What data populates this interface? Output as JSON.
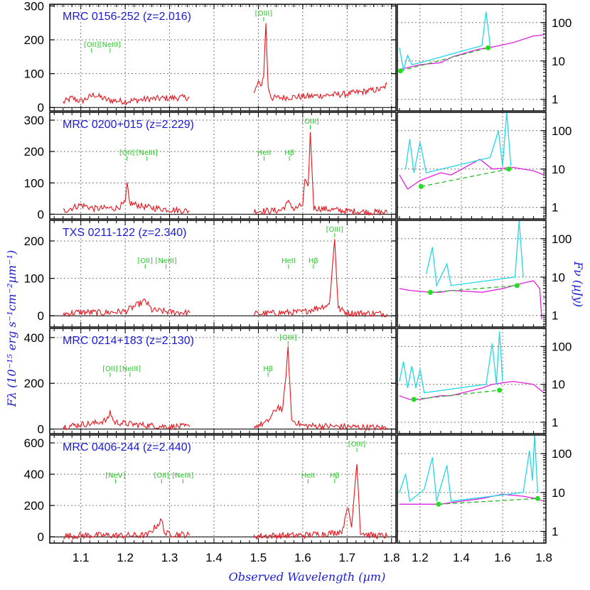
{
  "chart_data": {
    "type": "line",
    "xlabel": "Observed Wavelength (µm)",
    "ylabel_left": "Fλ (10⁻¹⁵ erg s⁻¹cm⁻²µm⁻¹)",
    "ylabel_right": "Fν (µJy)",
    "x_range": [
      1.03,
      1.81
    ],
    "x_ticks": [
      "1.1",
      "1.2",
      "1.3",
      "1.4",
      "1.5",
      "1.6",
      "1.7",
      "1.8"
    ],
    "sed_x_range": [
      1.09,
      1.81
    ],
    "sed_x_ticks": [
      "1.2",
      "1.4",
      "1.6",
      "1.8"
    ],
    "sed_y_range_log": [
      0.5,
      300
    ],
    "sed_y_ticks": [
      "1",
      "10",
      "100"
    ],
    "panels": [
      {
        "name": "MRC 0156-252",
        "redshift": "(z=2.016)",
        "ylim": [
          -10,
          305
        ],
        "yticks": [
          "0",
          "100",
          "200",
          "300"
        ],
        "lines": [
          {
            "label": "[OII]",
            "x": 1.124
          },
          {
            "label": "[NeIII]",
            "x": 1.166
          },
          {
            "label": "[OIII]",
            "x": 1.512
          }
        ],
        "spectrum_segments": [
          [
            [
              1.06,
              15
            ],
            [
              1.08,
              28
            ],
            [
              1.1,
              18
            ],
            [
              1.13,
              38
            ],
            [
              1.16,
              22
            ],
            [
              1.2,
              18
            ],
            [
              1.25,
              25
            ],
            [
              1.3,
              28
            ],
            [
              1.345,
              30
            ]
          ],
          [
            [
              1.49,
              40
            ],
            [
              1.5,
              75
            ],
            [
              1.505,
              60
            ],
            [
              1.512,
              95
            ],
            [
              1.517,
              250
            ],
            [
              1.522,
              60
            ],
            [
              1.53,
              28
            ],
            [
              1.6,
              32
            ],
            [
              1.7,
              40
            ],
            [
              1.78,
              55
            ],
            [
              1.79,
              70
            ]
          ]
        ],
        "sed_cyan": [
          [
            1.1,
            22
          ],
          [
            1.12,
            6
          ],
          [
            1.14,
            14
          ],
          [
            1.16,
            8
          ],
          [
            1.2,
            9
          ],
          [
            1.5,
            25
          ],
          [
            1.52,
            190
          ],
          [
            1.54,
            25
          ]
        ],
        "sed_magenta": [
          [
            1.1,
            6
          ],
          [
            1.2,
            8
          ],
          [
            1.3,
            9
          ],
          [
            1.36,
            13
          ],
          [
            1.48,
            20
          ],
          [
            1.55,
            23
          ],
          [
            1.65,
            30
          ],
          [
            1.75,
            45
          ],
          [
            1.8,
            48
          ]
        ],
        "sed_points": [
          [
            1.105,
            5.5
          ],
          [
            1.53,
            22
          ]
        ]
      },
      {
        "name": "MRC 0200+015",
        "redshift": "(z=2.229)",
        "ylim": [
          -15,
          325
        ],
        "yticks": [
          "0",
          "100",
          "200",
          "300"
        ],
        "lines": [
          {
            "label": "[OII]",
            "x": 1.204
          },
          {
            "label": "[NeIII]",
            "x": 1.249
          },
          {
            "label": "HeII",
            "x": 1.513
          },
          {
            "label": "Hβ",
            "x": 1.57
          },
          {
            "label": "[OIII]",
            "x": 1.617
          }
        ],
        "spectrum_segments": [
          [
            [
              1.06,
              10
            ],
            [
              1.08,
              20
            ],
            [
              1.1,
              30
            ],
            [
              1.13,
              18
            ],
            [
              1.18,
              20
            ],
            [
              1.2,
              35
            ],
            [
              1.204,
              95
            ],
            [
              1.21,
              35
            ],
            [
              1.25,
              22
            ],
            [
              1.3,
              15
            ],
            [
              1.345,
              10
            ]
          ],
          [
            [
              1.49,
              10
            ],
            [
              1.55,
              12
            ],
            [
              1.57,
              40
            ],
            [
              1.58,
              15
            ],
            [
              1.6,
              30
            ],
            [
              1.605,
              110
            ],
            [
              1.612,
              80
            ],
            [
              1.617,
              260
            ],
            [
              1.625,
              20
            ],
            [
              1.7,
              10
            ],
            [
              1.79,
              5
            ]
          ]
        ],
        "sed_cyan": [
          [
            1.13,
            10
          ],
          [
            1.15,
            60
          ],
          [
            1.17,
            8
          ],
          [
            1.2,
            50
          ],
          [
            1.23,
            8
          ],
          [
            1.54,
            20
          ],
          [
            1.58,
            100
          ],
          [
            1.6,
            12
          ],
          [
            1.62,
            300
          ],
          [
            1.64,
            12
          ]
        ],
        "sed_magenta": [
          [
            1.1,
            7
          ],
          [
            1.14,
            3
          ],
          [
            1.2,
            5
          ],
          [
            1.3,
            8
          ],
          [
            1.35,
            7
          ],
          [
            1.49,
            18
          ],
          [
            1.55,
            10
          ],
          [
            1.65,
            11
          ],
          [
            1.75,
            9
          ],
          [
            1.8,
            7
          ]
        ],
        "sed_points": [
          [
            1.205,
            3.5
          ],
          [
            1.63,
            10
          ]
        ]
      },
      {
        "name": "TXS 0211-122",
        "redshift": "(z=2.340)",
        "ylim": [
          -30,
          255
        ],
        "yticks": [
          "0",
          "100",
          "200"
        ],
        "lines": [
          {
            "label": "[OII]",
            "x": 1.245
          },
          {
            "label": "[NeIII]",
            "x": 1.292
          },
          {
            "label": "HeII",
            "x": 1.568
          },
          {
            "label": "Hβ",
            "x": 1.624
          },
          {
            "label": "[OIII]",
            "x": 1.672
          }
        ],
        "spectrum_segments": [
          [
            [
              1.06,
              5
            ],
            [
              1.1,
              10
            ],
            [
              1.15,
              8
            ],
            [
              1.2,
              12
            ],
            [
              1.245,
              40
            ],
            [
              1.26,
              15
            ],
            [
              1.3,
              10
            ],
            [
              1.345,
              8
            ]
          ],
          [
            [
              1.49,
              5
            ],
            [
              1.55,
              8
            ],
            [
              1.6,
              10
            ],
            [
              1.66,
              30
            ],
            [
              1.672,
              205
            ],
            [
              1.68,
              20
            ],
            [
              1.7,
              8
            ],
            [
              1.79,
              5
            ]
          ]
        ],
        "sed_cyan": [
          [
            1.23,
            12
          ],
          [
            1.26,
            60
          ],
          [
            1.28,
            6
          ],
          [
            1.33,
            22
          ],
          [
            1.35,
            6
          ],
          [
            1.66,
            10
          ],
          [
            1.68,
            300
          ],
          [
            1.7,
            10
          ]
        ],
        "sed_magenta": [
          [
            1.1,
            5
          ],
          [
            1.15,
            4.5
          ],
          [
            1.25,
            4
          ],
          [
            1.3,
            4
          ],
          [
            1.35,
            4.5
          ],
          [
            1.5,
            4
          ],
          [
            1.6,
            5
          ],
          [
            1.7,
            7
          ],
          [
            1.75,
            8
          ],
          [
            1.78,
            5
          ],
          [
            1.79,
            0.8
          ]
        ],
        "sed_points": [
          [
            1.25,
            4
          ],
          [
            1.67,
            6
          ]
        ]
      },
      {
        "name": "MRC 0214+183",
        "redshift": "(z=2.130)",
        "ylim": [
          -20,
          440
        ],
        "yticks": [
          "0",
          "200",
          "400"
        ],
        "lines": [
          {
            "label": "[OII]",
            "x": 1.166
          },
          {
            "label": "[NeIII]",
            "x": 1.211
          },
          {
            "label": "Hβ",
            "x": 1.522
          },
          {
            "label": "[OIII]",
            "x": 1.567
          }
        ],
        "spectrum_segments": [
          [
            [
              1.06,
              10
            ],
            [
              1.1,
              20
            ],
            [
              1.13,
              25
            ],
            [
              1.16,
              40
            ],
            [
              1.166,
              75
            ],
            [
              1.175,
              30
            ],
            [
              1.22,
              20
            ],
            [
              1.28,
              12
            ],
            [
              1.345,
              10
            ]
          ],
          [
            [
              1.49,
              10
            ],
            [
              1.52,
              30
            ],
            [
              1.545,
              100
            ],
            [
              1.555,
              80
            ],
            [
              1.567,
              350
            ],
            [
              1.575,
              40
            ],
            [
              1.6,
              15
            ],
            [
              1.7,
              10
            ],
            [
              1.79,
              5
            ]
          ]
        ],
        "sed_cyan": [
          [
            1.1,
            12
          ],
          [
            1.12,
            40
          ],
          [
            1.14,
            8
          ],
          [
            1.16,
            30
          ],
          [
            1.18,
            8
          ],
          [
            1.2,
            25
          ],
          [
            1.22,
            6
          ],
          [
            1.52,
            10
          ],
          [
            1.55,
            120
          ],
          [
            1.57,
            10
          ],
          [
            1.585,
            250
          ],
          [
            1.6,
            12
          ]
        ],
        "sed_magenta": [
          [
            1.1,
            5
          ],
          [
            1.15,
            4
          ],
          [
            1.2,
            4
          ],
          [
            1.3,
            5
          ],
          [
            1.35,
            5
          ],
          [
            1.5,
            8
          ],
          [
            1.55,
            10
          ],
          [
            1.65,
            12
          ],
          [
            1.75,
            10
          ],
          [
            1.8,
            6
          ]
        ],
        "sed_points": [
          [
            1.17,
            4
          ],
          [
            1.585,
            7
          ]
        ]
      },
      {
        "name": "MRC 0406-244",
        "redshift": "(z=2.440)",
        "ylim": [
          -40,
          650
        ],
        "yticks": [
          "0",
          "200",
          "400",
          "600"
        ],
        "lines": [
          {
            "label": "[NeV]",
            "x": 1.178
          },
          {
            "label": "[OII]",
            "x": 1.282
          },
          {
            "label": "[NeIII]",
            "x": 1.33
          },
          {
            "label": "HeII",
            "x": 1.612
          },
          {
            "label": "Hβ",
            "x": 1.672
          },
          {
            "label": "[OIII]",
            "x": 1.722
          }
        ],
        "spectrum_segments": [
          [
            [
              1.06,
              5
            ],
            [
              1.12,
              10
            ],
            [
              1.2,
              8
            ],
            [
              1.25,
              10
            ],
            [
              1.282,
              105
            ],
            [
              1.29,
              20
            ],
            [
              1.33,
              15
            ],
            [
              1.345,
              10
            ]
          ],
          [
            [
              1.49,
              5
            ],
            [
              1.6,
              10
            ],
            [
              1.67,
              25
            ],
            [
              1.69,
              40
            ],
            [
              1.7,
              200
            ],
            [
              1.71,
              60
            ],
            [
              1.722,
              485
            ],
            [
              1.73,
              30
            ],
            [
              1.75,
              10
            ],
            [
              1.79,
              5
            ]
          ]
        ],
        "sed_cyan": [
          [
            1.1,
            10
          ],
          [
            1.13,
            30
          ],
          [
            1.15,
            6
          ],
          [
            1.22,
            12
          ],
          [
            1.26,
            80
          ],
          [
            1.28,
            6
          ],
          [
            1.33,
            50
          ],
          [
            1.35,
            6
          ],
          [
            1.7,
            10
          ],
          [
            1.73,
            120
          ],
          [
            1.745,
            20
          ],
          [
            1.755,
            300
          ],
          [
            1.77,
            10
          ]
        ],
        "sed_magenta": [
          [
            1.1,
            5
          ],
          [
            1.2,
            5
          ],
          [
            1.3,
            5
          ],
          [
            1.35,
            5.5
          ],
          [
            1.5,
            7
          ],
          [
            1.6,
            9
          ],
          [
            1.7,
            8
          ],
          [
            1.76,
            7
          ],
          [
            1.8,
            6
          ]
        ],
        "sed_points": [
          [
            1.29,
            5
          ],
          [
            1.77,
            7
          ]
        ]
      }
    ]
  }
}
